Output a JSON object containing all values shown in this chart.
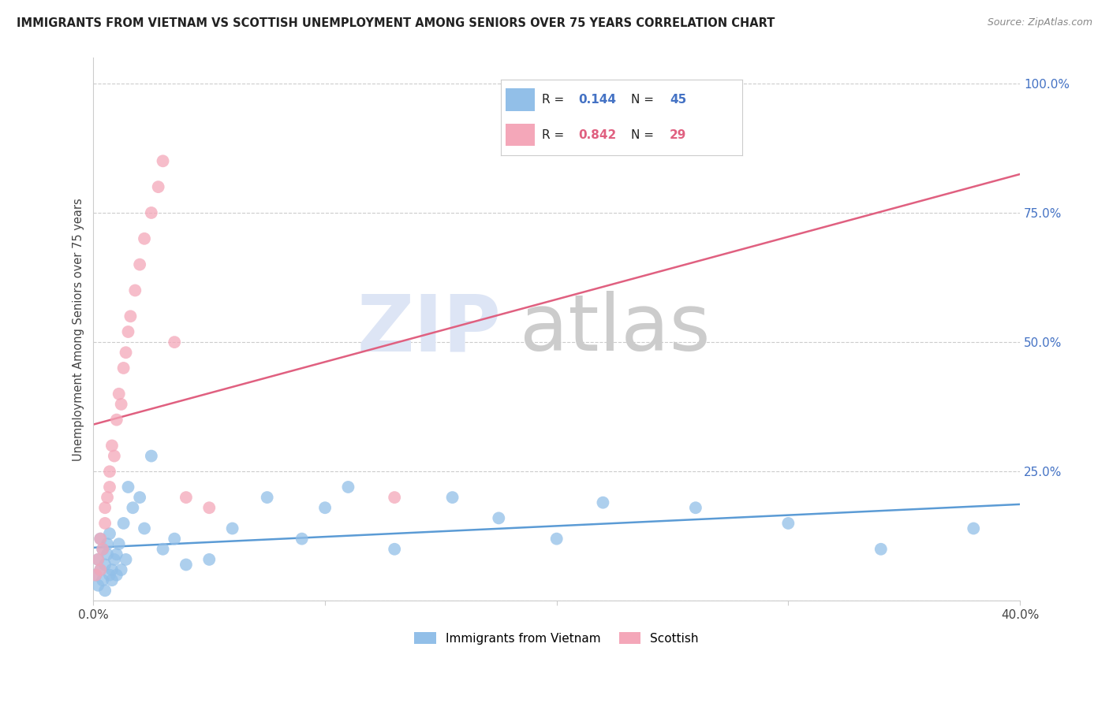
{
  "title": "IMMIGRANTS FROM VIETNAM VS SCOTTISH UNEMPLOYMENT AMONG SENIORS OVER 75 YEARS CORRELATION CHART",
  "source": "Source: ZipAtlas.com",
  "ylabel": "Unemployment Among Seniors over 75 years",
  "ytick_positions": [
    0.0,
    0.25,
    0.5,
    0.75,
    1.0
  ],
  "ytick_labels": [
    "",
    "25.0%",
    "50.0%",
    "75.0%",
    "100.0%"
  ],
  "xtick_positions": [
    0.0,
    0.1,
    0.2,
    0.3,
    0.4
  ],
  "xtick_labels": [
    "0.0%",
    "",
    "",
    "",
    "40.0%"
  ],
  "xlim": [
    0.0,
    0.4
  ],
  "ylim": [
    0.0,
    1.05
  ],
  "blue_R": "0.144",
  "blue_N": "45",
  "pink_R": "0.842",
  "pink_N": "29",
  "blue_color": "#92bfe8",
  "pink_color": "#f4a7b9",
  "blue_line_color": "#5b9bd5",
  "pink_line_color": "#e06080",
  "legend_label_blue": "Immigrants from Vietnam",
  "legend_label_pink": "Scottish",
  "blue_scatter_x": [
    0.001,
    0.002,
    0.002,
    0.003,
    0.003,
    0.004,
    0.004,
    0.005,
    0.005,
    0.006,
    0.006,
    0.007,
    0.007,
    0.008,
    0.008,
    0.009,
    0.01,
    0.01,
    0.011,
    0.012,
    0.013,
    0.014,
    0.015,
    0.017,
    0.02,
    0.022,
    0.025,
    0.03,
    0.035,
    0.04,
    0.05,
    0.06,
    0.075,
    0.09,
    0.1,
    0.11,
    0.13,
    0.155,
    0.175,
    0.2,
    0.22,
    0.26,
    0.3,
    0.34,
    0.38
  ],
  "blue_scatter_y": [
    0.05,
    0.08,
    0.03,
    0.12,
    0.06,
    0.04,
    0.1,
    0.07,
    0.02,
    0.09,
    0.11,
    0.05,
    0.13,
    0.06,
    0.04,
    0.08,
    0.09,
    0.05,
    0.11,
    0.06,
    0.15,
    0.08,
    0.22,
    0.18,
    0.2,
    0.14,
    0.28,
    0.1,
    0.12,
    0.07,
    0.08,
    0.14,
    0.2,
    0.12,
    0.18,
    0.22,
    0.1,
    0.2,
    0.16,
    0.12,
    0.19,
    0.18,
    0.15,
    0.1,
    0.14
  ],
  "pink_scatter_x": [
    0.001,
    0.002,
    0.003,
    0.003,
    0.004,
    0.005,
    0.005,
    0.006,
    0.007,
    0.007,
    0.008,
    0.009,
    0.01,
    0.011,
    0.012,
    0.013,
    0.014,
    0.015,
    0.016,
    0.018,
    0.02,
    0.022,
    0.025,
    0.028,
    0.03,
    0.035,
    0.04,
    0.05,
    0.13
  ],
  "pink_scatter_y": [
    0.05,
    0.08,
    0.06,
    0.12,
    0.1,
    0.15,
    0.18,
    0.2,
    0.22,
    0.25,
    0.3,
    0.28,
    0.35,
    0.4,
    0.38,
    0.45,
    0.48,
    0.52,
    0.55,
    0.6,
    0.65,
    0.7,
    0.75,
    0.8,
    0.85,
    0.5,
    0.2,
    0.18,
    0.2
  ],
  "background_color": "#ffffff",
  "grid_color": "#cccccc",
  "title_color": "#222222",
  "blue_stat_color": "#4472c4",
  "pink_stat_color": "#e06080",
  "watermark_zip_color": "#dde5f5",
  "watermark_atlas_color": "#cccccc"
}
